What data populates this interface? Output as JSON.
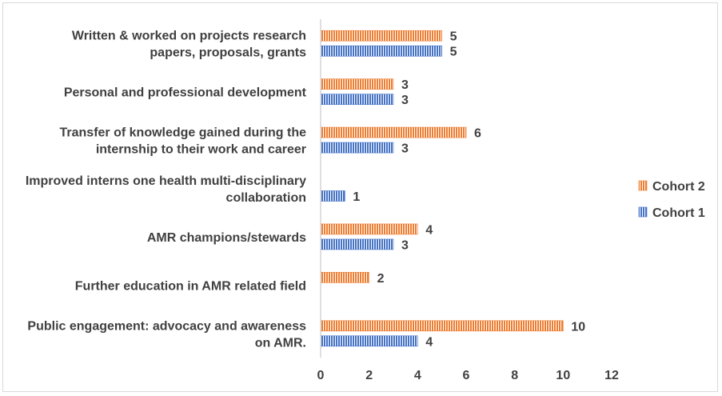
{
  "chart_data": {
    "type": "bar",
    "orientation": "horizontal",
    "categories": [
      [
        "Written & worked on projects research",
        "papers, proposals, grants"
      ],
      [
        "Personal and professional development"
      ],
      [
        "Transfer of knowledge gained during the",
        "internship to their work and career"
      ],
      [
        "Improved interns one health multi-disciplinary",
        "collaboration"
      ],
      [
        "AMR champions/stewards"
      ],
      [
        "Further education in AMR related field"
      ],
      [
        "Public engagement: advocacy and awareness",
        "on AMR."
      ]
    ],
    "series": [
      {
        "name": "Cohort 2",
        "color": "#ED7D31",
        "values": [
          5,
          3,
          6,
          null,
          4,
          2,
          10
        ]
      },
      {
        "name": "Cohort 1",
        "color": "#4472C4",
        "values": [
          5,
          3,
          3,
          1,
          3,
          null,
          4
        ]
      }
    ],
    "xlim": [
      0,
      12
    ],
    "xticks": [
      0,
      2,
      4,
      6,
      8,
      10,
      12
    ],
    "bar_pattern": "vertical-stripes",
    "grid": false,
    "legend_position": "right",
    "title": "",
    "xlabel": "",
    "ylabel": ""
  }
}
